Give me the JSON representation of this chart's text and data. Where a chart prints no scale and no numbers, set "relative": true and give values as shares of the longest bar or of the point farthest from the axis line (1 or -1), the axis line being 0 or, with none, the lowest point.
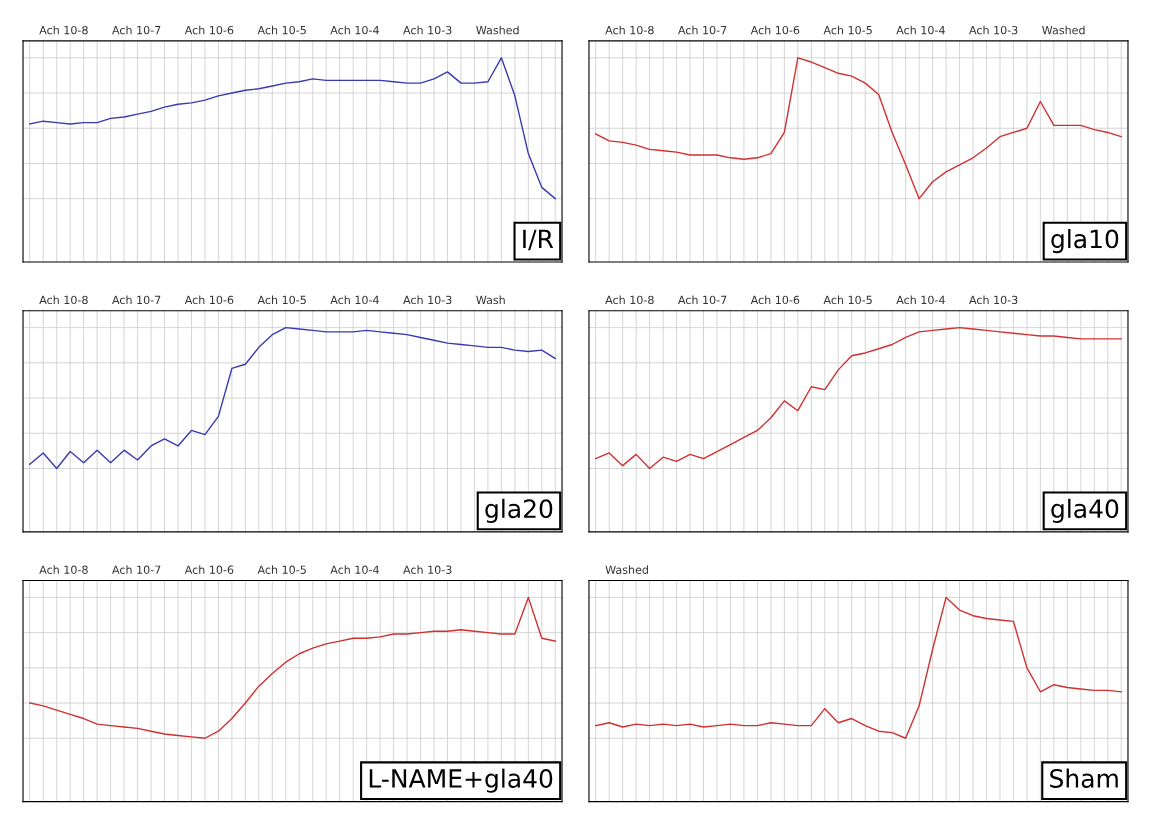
{
  "chart_data": [
    {
      "type": "line",
      "title": "I/R",
      "relative": true,
      "grid": true,
      "categories": [
        null,
        null,
        null,
        null,
        null,
        null,
        null,
        null,
        null,
        null,
        null,
        null,
        null,
        null,
        null,
        null,
        null,
        null,
        null,
        null,
        null,
        null,
        null,
        null,
        null,
        null,
        null,
        null,
        null,
        null,
        null,
        null,
        null,
        null,
        null,
        null,
        null,
        null,
        null,
        null
      ],
      "series": [
        {
          "color": "#3a3ab0",
          "values": [
            0.53,
            0.55,
            0.54,
            0.53,
            0.54,
            0.54,
            0.57,
            0.58,
            0.6,
            0.62,
            0.65,
            0.67,
            0.68,
            0.7,
            0.73,
            0.75,
            0.77,
            0.78,
            0.8,
            0.82,
            0.83,
            0.85,
            0.84,
            0.84,
            0.84,
            0.84,
            0.84,
            0.83,
            0.82,
            0.82,
            0.85,
            0.9,
            0.82,
            0.82,
            0.83,
            1,
            0.73,
            0.32,
            0.08,
            0
          ]
        }
      ],
      "annotations": [
        "Ach 10-8",
        "Ach 10-7",
        "Ach 10-6",
        "Ach 10-5",
        "Ach 10-4",
        "Ach 10-3",
        "Washed"
      ]
    },
    {
      "type": "line",
      "title": "gla10",
      "relative": true,
      "grid": true,
      "categories": [
        null,
        null,
        null,
        null,
        null,
        null,
        null,
        null,
        null,
        null,
        null,
        null,
        null,
        null,
        null,
        null,
        null,
        null,
        null,
        null,
        null,
        null,
        null,
        null,
        null,
        null,
        null,
        null,
        null,
        null,
        null,
        null,
        null,
        null,
        null,
        null,
        null,
        null,
        null,
        null
      ],
      "series": [
        {
          "color": "#d03030",
          "values": [
            0.46,
            0.41,
            0.4,
            0.38,
            0.35,
            0.34,
            0.33,
            0.31,
            0.31,
            0.31,
            0.29,
            0.28,
            0.29,
            0.32,
            0.47,
            1,
            0.97,
            0.93,
            0.89,
            0.87,
            0.82,
            0.74,
            0.47,
            0.24,
            0,
            0.12,
            0.19,
            0.24,
            0.29,
            0.36,
            0.44,
            0.47,
            0.5,
            0.69,
            0.52,
            0.52,
            0.52,
            0.49,
            0.47,
            0.44
          ]
        }
      ],
      "annotations": [
        "Ach 10-8",
        "Ach 10-7",
        "Ach 10-6",
        "Ach 10-5",
        "Ach 10-4",
        "Ach 10-3",
        "Washed"
      ]
    },
    {
      "type": "line",
      "title": "gla20",
      "relative": true,
      "grid": true,
      "categories": [
        null,
        null,
        null,
        null,
        null,
        null,
        null,
        null,
        null,
        null,
        null,
        null,
        null,
        null,
        null,
        null,
        null,
        null,
        null,
        null,
        null,
        null,
        null,
        null,
        null,
        null,
        null,
        null,
        null,
        null,
        null,
        null,
        null,
        null,
        null,
        null,
        null,
        null,
        null,
        null
      ],
      "series": [
        {
          "color": "#3a3ab0",
          "values": [
            0.03,
            0.11,
            0,
            0.12,
            0.04,
            0.13,
            0.04,
            0.13,
            0.06,
            0.16,
            0.21,
            0.16,
            0.27,
            0.24,
            0.37,
            0.71,
            0.74,
            0.86,
            0.95,
            1,
            0.99,
            0.98,
            0.97,
            0.97,
            0.97,
            0.98,
            0.97,
            0.96,
            0.95,
            0.93,
            0.91,
            0.89,
            0.88,
            0.87,
            0.86,
            0.86,
            0.84,
            0.83,
            0.84,
            0.78
          ]
        }
      ],
      "annotations": [
        "Ach 10-8",
        "Ach 10-7",
        "Ach 10-6",
        "Ach 10-5",
        "Ach 10-4",
        "Ach 10-3",
        "Wash"
      ]
    },
    {
      "type": "line",
      "title": "gla40",
      "relative": true,
      "grid": true,
      "categories": [
        null,
        null,
        null,
        null,
        null,
        null,
        null,
        null,
        null,
        null,
        null,
        null,
        null,
        null,
        null,
        null,
        null,
        null,
        null,
        null,
        null,
        null,
        null,
        null,
        null,
        null,
        null,
        null,
        null,
        null,
        null,
        null,
        null,
        null,
        null,
        null,
        null,
        null,
        null,
        null
      ],
      "series": [
        {
          "color": "#d03030",
          "values": [
            0.07,
            0.11,
            0.02,
            0.1,
            0,
            0.08,
            0.05,
            0.1,
            0.07,
            0.12,
            0.17,
            0.22,
            0.27,
            0.36,
            0.48,
            0.41,
            0.58,
            0.56,
            0.7,
            0.8,
            0.82,
            0.85,
            0.88,
            0.93,
            0.97,
            0.98,
            0.99,
            1,
            0.99,
            0.98,
            0.97,
            0.96,
            0.95,
            0.94,
            0.94,
            0.93,
            0.92,
            0.92,
            0.92,
            0.92
          ]
        }
      ],
      "annotations": [
        "Ach 10-8",
        "Ach 10-7",
        "Ach 10-6",
        "Ach 10-5",
        "Ach 10-4",
        "Ach 10-3"
      ]
    },
    {
      "type": "line",
      "title": "L-NAME+gla40",
      "relative": true,
      "grid": true,
      "categories": [
        null,
        null,
        null,
        null,
        null,
        null,
        null,
        null,
        null,
        null,
        null,
        null,
        null,
        null,
        null,
        null,
        null,
        null,
        null,
        null,
        null,
        null,
        null,
        null,
        null,
        null,
        null,
        null,
        null,
        null,
        null,
        null,
        null,
        null,
        null,
        null,
        null,
        null,
        null,
        null
      ],
      "series": [
        {
          "color": "#d03030",
          "values": [
            0.25,
            0.23,
            0.2,
            0.17,
            0.14,
            0.1,
            0.09,
            0.08,
            0.07,
            0.05,
            0.03,
            0.02,
            0.01,
            0,
            0.05,
            0.14,
            0.25,
            0.37,
            0.46,
            0.54,
            0.6,
            0.64,
            0.67,
            0.69,
            0.71,
            0.71,
            0.72,
            0.74,
            0.74,
            0.75,
            0.76,
            0.76,
            0.77,
            0.76,
            0.75,
            0.74,
            0.74,
            1,
            0.71,
            0.69
          ]
        }
      ],
      "annotations": [
        "Ach 10-8",
        "Ach 10-7",
        "Ach 10-6",
        "Ach 10-5",
        "Ach 10-4",
        "Ach 10-3"
      ]
    },
    {
      "type": "line",
      "title": "Sham",
      "relative": true,
      "grid": true,
      "categories": [
        null,
        null,
        null,
        null,
        null,
        null,
        null,
        null,
        null,
        null,
        null,
        null,
        null,
        null,
        null,
        null,
        null,
        null,
        null,
        null,
        null,
        null,
        null,
        null,
        null,
        null,
        null,
        null,
        null,
        null,
        null,
        null,
        null,
        null,
        null,
        null,
        null,
        null,
        null,
        null
      ],
      "series": [
        {
          "color": "#d03030",
          "values": [
            0.09,
            0.11,
            0.08,
            0.1,
            0.09,
            0.1,
            0.09,
            0.1,
            0.08,
            0.09,
            0.1,
            0.09,
            0.09,
            0.11,
            0.1,
            0.09,
            0.09,
            0.21,
            0.11,
            0.14,
            0.09,
            0.05,
            0.04,
            0,
            0.23,
            0.63,
            1,
            0.91,
            0.87,
            0.85,
            0.84,
            0.83,
            0.5,
            0.33,
            0.38,
            0.36,
            0.35,
            0.34,
            0.34,
            0.33
          ]
        }
      ],
      "annotations": [
        "Washed"
      ]
    }
  ]
}
